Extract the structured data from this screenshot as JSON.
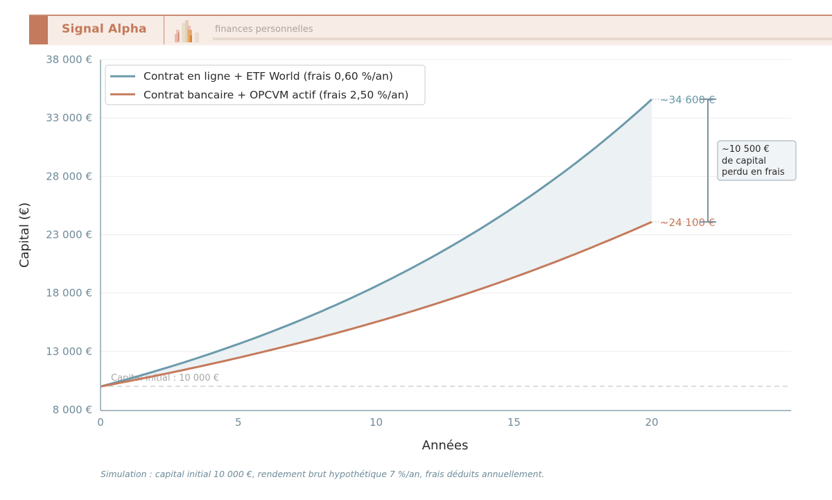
{
  "header": {
    "brand": "Signal Alpha",
    "tagline": "finances personnelles",
    "logo_icon": "bar-chart-logo-icon",
    "colors": {
      "brand": "#c47a5c",
      "background": "#f7ece6"
    }
  },
  "chart": {
    "y_axis_title": "Capital (€)",
    "x_axis_title": "Années",
    "y_ticks": [
      "8 000 €",
      "13 000 €",
      "18 000 €",
      "23 000 €",
      "28 000 €",
      "33 000 €",
      "38 000 €"
    ],
    "x_ticks": [
      "0",
      "5",
      "10",
      "15",
      "20"
    ],
    "legend": [
      {
        "label": "Contrat en ligne + ETF World (frais 0,60 %/an)",
        "color": "#6b9aab"
      },
      {
        "label": "Contrat bancaire + OPCVM actif (frais 2,50 %/an)",
        "color": "#c47a5c"
      }
    ],
    "baseline_label": "Capital initial : 10 000 €",
    "end_label_etf": "~34 600 €",
    "end_label_opcvm": "~24 100 €",
    "gap_annotation": {
      "line1": "~10 500 €",
      "line2": "de capital",
      "line3": "perdu en frais"
    }
  },
  "footnote": "Simulation : capital initial 10 000 €, rendement brut hypothétique 7 %/an, frais déduits annuellement.",
  "chart_data": {
    "type": "line",
    "title": "",
    "xlabel": "Années",
    "ylabel": "Capital (€)",
    "xlim": [
      0,
      25
    ],
    "ylim": [
      8000,
      38000
    ],
    "grid": "horizontal",
    "legend_position": "upper left",
    "x": [
      0,
      2,
      4,
      6,
      8,
      10,
      12,
      14,
      16,
      18,
      20
    ],
    "series": [
      {
        "name": "Contrat en ligne + ETF World (frais 0,60 %/an)",
        "color": "#6b9aab",
        "values": [
          10000,
          11321,
          12817,
          14510,
          16426,
          18596,
          21052,
          23833,
          26981,
          30545,
          34600
        ]
      },
      {
        "name": "Contrat bancaire + OPCVM actif (frais 2,50 %/an)",
        "color": "#c47a5c",
        "values": [
          10000,
          10920,
          11925,
          13023,
          14221,
          15530,
          16959,
          18519,
          20223,
          22084,
          24100
        ]
      }
    ],
    "annotations": [
      {
        "type": "hline",
        "y": 10000,
        "text": "Capital initial : 10 000 €",
        "style": "dashed"
      },
      {
        "type": "label",
        "x": 20,
        "y": 34600,
        "text": "~34 600 €"
      },
      {
        "type": "label",
        "x": 20,
        "y": 24100,
        "text": "~24 100 €"
      },
      {
        "type": "bracket",
        "from": 24100,
        "to": 34600,
        "text": "~10 500 € de capital perdu en frais"
      },
      {
        "type": "fill_between",
        "series": [
          0,
          1
        ],
        "color": "#eaf0f3"
      }
    ]
  }
}
